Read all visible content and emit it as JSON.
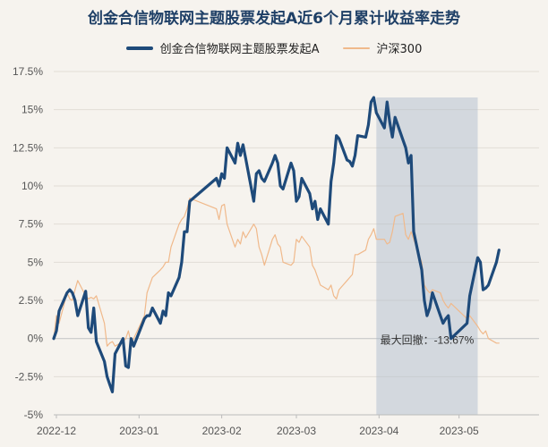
{
  "chart_data": {
    "type": "line",
    "title": "创金合信物联网主题股票发起A近6个月累计收益率走势",
    "legend_position": "top-center",
    "grid": true,
    "x_range": [
      "2022-11-30",
      "2023-05-31"
    ],
    "ylim": [
      -5,
      17.5
    ],
    "y_ticks": [
      "-5%",
      "-2.5%",
      "0%",
      "2.5%",
      "5%",
      "7.5%",
      "10%",
      "12.5%",
      "15%",
      "17.5%"
    ],
    "y_tick_values": [
      -5,
      -2.5,
      0,
      2.5,
      5,
      7.5,
      10,
      12.5,
      15,
      17.5
    ],
    "x_ticks": [
      "2022-12",
      "2023-01",
      "2023-02",
      "2023-03",
      "2023-04",
      "2023-05"
    ],
    "x_tick_dates": [
      "2022-12-01",
      "2023-01-01",
      "2023-02-01",
      "2023-03-01",
      "2023-04-01",
      "2023-05-01"
    ],
    "series": [
      {
        "name": "创金合信物联网主题股票发起A",
        "color": "#1e4a7a",
        "points": [
          [
            "2022-11-30",
            0.0
          ],
          [
            "2022-12-01",
            0.5
          ],
          [
            "2022-12-02",
            1.8
          ],
          [
            "2022-12-05",
            3.0
          ],
          [
            "2022-12-06",
            3.2
          ],
          [
            "2022-12-07",
            3.0
          ],
          [
            "2022-12-08",
            2.5
          ],
          [
            "2022-12-09",
            1.5
          ],
          [
            "2022-12-12",
            3.1
          ],
          [
            "2022-12-13",
            0.7
          ],
          [
            "2022-12-14",
            0.4
          ],
          [
            "2022-12-15",
            2.0
          ],
          [
            "2022-12-16",
            -0.2
          ],
          [
            "2022-12-19",
            -1.5
          ],
          [
            "2022-12-20",
            -2.5
          ],
          [
            "2022-12-21",
            -3.0
          ],
          [
            "2022-12-22",
            -3.5
          ],
          [
            "2022-12-23",
            -1.0
          ],
          [
            "2022-12-26",
            0.0
          ],
          [
            "2022-12-27",
            -1.8
          ],
          [
            "2022-12-28",
            -1.9
          ],
          [
            "2022-12-29",
            0.0
          ],
          [
            "2022-12-30",
            -0.5
          ],
          [
            "2023-01-03",
            1.3
          ],
          [
            "2023-01-04",
            1.5
          ],
          [
            "2023-01-05",
            1.5
          ],
          [
            "2023-01-06",
            2.0
          ],
          [
            "2023-01-09",
            1.0
          ],
          [
            "2023-01-10",
            1.8
          ],
          [
            "2023-01-11",
            1.5
          ],
          [
            "2023-01-12",
            3.0
          ],
          [
            "2023-01-13",
            2.8
          ],
          [
            "2023-01-16",
            4.0
          ],
          [
            "2023-01-17",
            5.0
          ],
          [
            "2023-01-18",
            7.0
          ],
          [
            "2023-01-19",
            7.0
          ],
          [
            "2023-01-20",
            9.0
          ],
          [
            "2023-01-30",
            10.5
          ],
          [
            "2023-01-31",
            10.0
          ],
          [
            "2023-02-01",
            10.8
          ],
          [
            "2023-02-02",
            10.5
          ],
          [
            "2023-02-03",
            12.5
          ],
          [
            "2023-02-06",
            11.5
          ],
          [
            "2023-02-07",
            12.8
          ],
          [
            "2023-02-08",
            12.0
          ],
          [
            "2023-02-09",
            12.7
          ],
          [
            "2023-02-10",
            11.8
          ],
          [
            "2023-02-13",
            9.0
          ],
          [
            "2023-02-14",
            10.8
          ],
          [
            "2023-02-15",
            11.0
          ],
          [
            "2023-02-16",
            10.5
          ],
          [
            "2023-02-17",
            10.3
          ],
          [
            "2023-02-20",
            11.5
          ],
          [
            "2023-02-21",
            12.0
          ],
          [
            "2023-02-22",
            11.5
          ],
          [
            "2023-02-23",
            10.0
          ],
          [
            "2023-02-24",
            9.8
          ],
          [
            "2023-02-27",
            11.5
          ],
          [
            "2023-02-28",
            11.0
          ],
          [
            "2023-03-01",
            9.0
          ],
          [
            "2023-03-02",
            9.3
          ],
          [
            "2023-03-03",
            10.5
          ],
          [
            "2023-03-06",
            9.5
          ],
          [
            "2023-03-07",
            8.5
          ],
          [
            "2023-03-08",
            9.0
          ],
          [
            "2023-03-09",
            7.8
          ],
          [
            "2023-03-10",
            8.5
          ],
          [
            "2023-03-13",
            7.5
          ],
          [
            "2023-03-14",
            10.3
          ],
          [
            "2023-03-15",
            11.5
          ],
          [
            "2023-03-16",
            13.3
          ],
          [
            "2023-03-17",
            13.1
          ],
          [
            "2023-03-20",
            11.7
          ],
          [
            "2023-03-21",
            11.6
          ],
          [
            "2023-03-22",
            11.3
          ],
          [
            "2023-03-23",
            12.0
          ],
          [
            "2023-03-24",
            13.3
          ],
          [
            "2023-03-27",
            13.2
          ],
          [
            "2023-03-28",
            14.0
          ],
          [
            "2023-03-29",
            15.5
          ],
          [
            "2023-03-30",
            15.8
          ],
          [
            "2023-03-31",
            14.8
          ],
          [
            "2023-04-03",
            13.8
          ],
          [
            "2023-04-04",
            15.5
          ],
          [
            "2023-04-05",
            14.2
          ],
          [
            "2023-04-06",
            13.2
          ],
          [
            "2023-04-07",
            14.5
          ],
          [
            "2023-04-10",
            13.0
          ],
          [
            "2023-04-11",
            12.5
          ],
          [
            "2023-04-12",
            11.5
          ],
          [
            "2023-04-13",
            12.0
          ],
          [
            "2023-04-14",
            7.0
          ],
          [
            "2023-04-17",
            4.5
          ],
          [
            "2023-04-18",
            2.5
          ],
          [
            "2023-04-19",
            1.5
          ],
          [
            "2023-04-20",
            2.0
          ],
          [
            "2023-04-21",
            3.0
          ],
          [
            "2023-04-24",
            1.5
          ],
          [
            "2023-04-25",
            1.0
          ],
          [
            "2023-04-26",
            1.3
          ],
          [
            "2023-04-27",
            1.5
          ],
          [
            "2023-04-28",
            0.0
          ],
          [
            "2023-05-04",
            1.0
          ],
          [
            "2023-05-05",
            2.8
          ],
          [
            "2023-05-08",
            5.3
          ],
          [
            "2023-05-09",
            5.0
          ],
          [
            "2023-05-10",
            3.2
          ],
          [
            "2023-05-11",
            3.3
          ],
          [
            "2023-05-12",
            3.5
          ],
          [
            "2023-05-15",
            5.0
          ],
          [
            "2023-05-16",
            5.8
          ]
        ]
      },
      {
        "name": "沪深300",
        "color": "#f0b98b",
        "points": [
          [
            "2022-11-30",
            0.0
          ],
          [
            "2022-12-01",
            1.5
          ],
          [
            "2022-12-02",
            1.0
          ],
          [
            "2022-12-05",
            3.0
          ],
          [
            "2022-12-06",
            2.6
          ],
          [
            "2022-12-07",
            2.5
          ],
          [
            "2022-12-08",
            3.2
          ],
          [
            "2022-12-09",
            3.8
          ],
          [
            "2022-12-12",
            2.8
          ],
          [
            "2022-12-13",
            2.6
          ],
          [
            "2022-12-14",
            2.7
          ],
          [
            "2022-12-15",
            2.6
          ],
          [
            "2022-12-16",
            2.8
          ],
          [
            "2022-12-19",
            1.0
          ],
          [
            "2022-12-20",
            -0.5
          ],
          [
            "2022-12-21",
            -0.3
          ],
          [
            "2022-12-22",
            -0.2
          ],
          [
            "2022-12-23",
            -0.5
          ],
          [
            "2022-12-26",
            -0.2
          ],
          [
            "2022-12-27",
            0.0
          ],
          [
            "2022-12-28",
            0.5
          ],
          [
            "2022-12-29",
            -0.3
          ],
          [
            "2022-12-30",
            0.0
          ],
          [
            "2023-01-03",
            1.5
          ],
          [
            "2023-01-04",
            3.0
          ],
          [
            "2023-01-05",
            3.5
          ],
          [
            "2023-01-06",
            4.0
          ],
          [
            "2023-01-09",
            4.5
          ],
          [
            "2023-01-10",
            4.7
          ],
          [
            "2023-01-11",
            5.0
          ],
          [
            "2023-01-12",
            5.0
          ],
          [
            "2023-01-13",
            6.0
          ],
          [
            "2023-01-16",
            7.5
          ],
          [
            "2023-01-17",
            7.8
          ],
          [
            "2023-01-18",
            8.0
          ],
          [
            "2023-01-19",
            8.5
          ],
          [
            "2023-01-20",
            9.2
          ],
          [
            "2023-01-30",
            8.5
          ],
          [
            "2023-01-31",
            7.8
          ],
          [
            "2023-02-01",
            8.7
          ],
          [
            "2023-02-02",
            8.8
          ],
          [
            "2023-02-03",
            7.5
          ],
          [
            "2023-02-06",
            6.0
          ],
          [
            "2023-02-07",
            6.5
          ],
          [
            "2023-02-08",
            6.2
          ],
          [
            "2023-02-09",
            7.0
          ],
          [
            "2023-02-10",
            6.6
          ],
          [
            "2023-02-13",
            7.5
          ],
          [
            "2023-02-14",
            7.2
          ],
          [
            "2023-02-15",
            6.0
          ],
          [
            "2023-02-16",
            5.5
          ],
          [
            "2023-02-17",
            4.8
          ],
          [
            "2023-02-20",
            6.5
          ],
          [
            "2023-02-21",
            6.8
          ],
          [
            "2023-02-22",
            6.2
          ],
          [
            "2023-02-23",
            6.0
          ],
          [
            "2023-02-24",
            5.0
          ],
          [
            "2023-02-27",
            4.8
          ],
          [
            "2023-02-28",
            5.0
          ],
          [
            "2023-03-01",
            6.5
          ],
          [
            "2023-03-02",
            6.3
          ],
          [
            "2023-03-03",
            6.7
          ],
          [
            "2023-03-06",
            6.0
          ],
          [
            "2023-03-07",
            4.8
          ],
          [
            "2023-03-08",
            4.5
          ],
          [
            "2023-03-09",
            4.0
          ],
          [
            "2023-03-10",
            3.5
          ],
          [
            "2023-03-13",
            3.2
          ],
          [
            "2023-03-14",
            3.5
          ],
          [
            "2023-03-15",
            2.8
          ],
          [
            "2023-03-16",
            2.6
          ],
          [
            "2023-03-17",
            3.2
          ],
          [
            "2023-03-20",
            3.8
          ],
          [
            "2023-03-21",
            4.0
          ],
          [
            "2023-03-22",
            4.2
          ],
          [
            "2023-03-23",
            5.5
          ],
          [
            "2023-03-24",
            5.5
          ],
          [
            "2023-03-27",
            5.8
          ],
          [
            "2023-03-28",
            6.5
          ],
          [
            "2023-03-29",
            6.8
          ],
          [
            "2023-03-30",
            7.2
          ],
          [
            "2023-03-31",
            6.5
          ],
          [
            "2023-04-03",
            6.5
          ],
          [
            "2023-04-04",
            6.2
          ],
          [
            "2023-04-05",
            6.3
          ],
          [
            "2023-04-06",
            7.0
          ],
          [
            "2023-04-07",
            8.0
          ],
          [
            "2023-04-10",
            8.2
          ],
          [
            "2023-04-11",
            6.8
          ],
          [
            "2023-04-12",
            6.5
          ],
          [
            "2023-04-13",
            7.0
          ],
          [
            "2023-04-14",
            6.5
          ],
          [
            "2023-04-17",
            5.0
          ],
          [
            "2023-04-18",
            3.5
          ],
          [
            "2023-04-19",
            3.2
          ],
          [
            "2023-04-20",
            3.0
          ],
          [
            "2023-04-21",
            3.2
          ],
          [
            "2023-04-24",
            3.0
          ],
          [
            "2023-04-25",
            2.5
          ],
          [
            "2023-04-26",
            2.2
          ],
          [
            "2023-04-27",
            2.0
          ],
          [
            "2023-04-28",
            2.3
          ],
          [
            "2023-05-04",
            1.3
          ],
          [
            "2023-05-05",
            1.5
          ],
          [
            "2023-05-08",
            0.8
          ],
          [
            "2023-05-09",
            0.5
          ],
          [
            "2023-05-10",
            0.3
          ],
          [
            "2023-05-11",
            0.5
          ],
          [
            "2023-05-12",
            0.0
          ],
          [
            "2023-05-15",
            -0.3
          ],
          [
            "2023-05-16",
            -0.3
          ]
        ]
      }
    ],
    "max_drawdown": {
      "label": "最大回撤：-13.67%",
      "start": "2023-03-31",
      "end": "2023-05-08",
      "top": 15.8,
      "bottom": -5
    }
  }
}
